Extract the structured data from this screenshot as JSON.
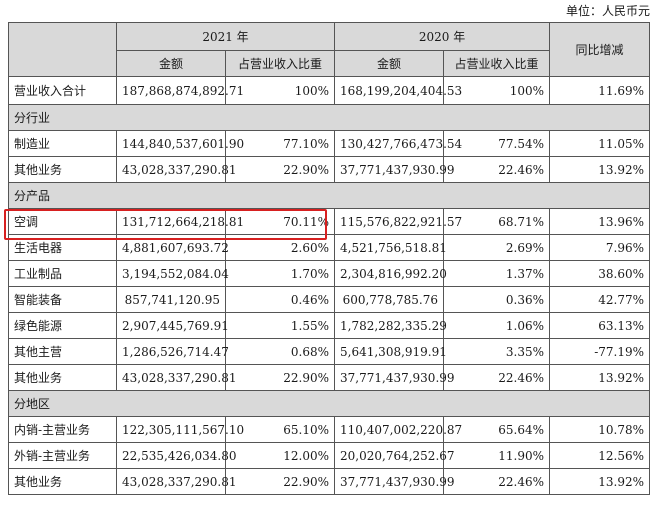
{
  "unit_note": "单位：人民币元",
  "header": {
    "year_2021": "2021 年",
    "year_2020": "2020 年",
    "yoy": "同比增减",
    "amount": "金额",
    "share": "占营业收入比重"
  },
  "total": {
    "label": "营业收入合计",
    "amount_2021": "187,868,874,892.71",
    "share_2021": "100%",
    "amount_2020": "168,199,204,404.53",
    "share_2020": "100%",
    "yoy": "11.69%"
  },
  "sections": [
    {
      "title": "分行业",
      "rows": [
        {
          "label": "制造业",
          "amount_2021": "144,840,537,601.90",
          "share_2021": "77.10%",
          "amount_2020": "130,427,766,473.54",
          "share_2020": "77.54%",
          "yoy": "11.05%"
        },
        {
          "label": "其他业务",
          "amount_2021": "43,028,337,290.81",
          "share_2021": "22.90%",
          "amount_2020": "37,771,437,930.99",
          "share_2020": "22.46%",
          "yoy": "13.92%"
        }
      ]
    },
    {
      "title": "分产品",
      "rows": [
        {
          "label": "空调",
          "amount_2021": "131,712,664,218.81",
          "share_2021": "70.11%",
          "amount_2020": "115,576,822,921.57",
          "share_2020": "68.71%",
          "yoy": "13.96%"
        },
        {
          "label": "生活电器",
          "amount_2021": "4,881,607,693.72",
          "share_2021": "2.60%",
          "amount_2020": "4,521,756,518.81",
          "share_2020": "2.69%",
          "yoy": "7.96%"
        },
        {
          "label": "工业制品",
          "amount_2021": "3,194,552,084.04",
          "share_2021": "1.70%",
          "amount_2020": "2,304,816,992.20",
          "share_2020": "1.37%",
          "yoy": "38.60%"
        },
        {
          "label": "智能装备",
          "amount_2021": "857,741,120.95",
          "share_2021": "0.46%",
          "amount_2020": "600,778,785.76",
          "share_2020": "0.36%",
          "yoy": "42.77%"
        },
        {
          "label": "绿色能源",
          "amount_2021": "2,907,445,769.91",
          "share_2021": "1.55%",
          "amount_2020": "1,782,282,335.29",
          "share_2020": "1.06%",
          "yoy": "63.13%"
        },
        {
          "label": "其他主营",
          "amount_2021": "1,286,526,714.47",
          "share_2021": "0.68%",
          "amount_2020": "5,641,308,919.91",
          "share_2020": "3.35%",
          "yoy": "-77.19%"
        },
        {
          "label": "其他业务",
          "amount_2021": "43,028,337,290.81",
          "share_2021": "22.90%",
          "amount_2020": "37,771,437,930.99",
          "share_2020": "22.46%",
          "yoy": "13.92%"
        }
      ]
    },
    {
      "title": "分地区",
      "rows": [
        {
          "label": "内销-主营业务",
          "amount_2021": "122,305,111,567.10",
          "share_2021": "65.10%",
          "amount_2020": "110,407,002,220.87",
          "share_2020": "65.64%",
          "yoy": "10.78%"
        },
        {
          "label": "外销-主营业务",
          "amount_2021": "22,535,426,034.80",
          "share_2021": "12.00%",
          "amount_2020": "20,020,764,252.67",
          "share_2020": "11.90%",
          "yoy": "12.56%"
        },
        {
          "label": "其他业务",
          "amount_2021": "43,028,337,290.81",
          "share_2021": "22.90%",
          "amount_2020": "37,771,437,930.99",
          "share_2020": "22.46%",
          "yoy": "13.92%"
        }
      ]
    }
  ],
  "highlight_color": "#d72020",
  "header_bg": "#d9d9d9"
}
